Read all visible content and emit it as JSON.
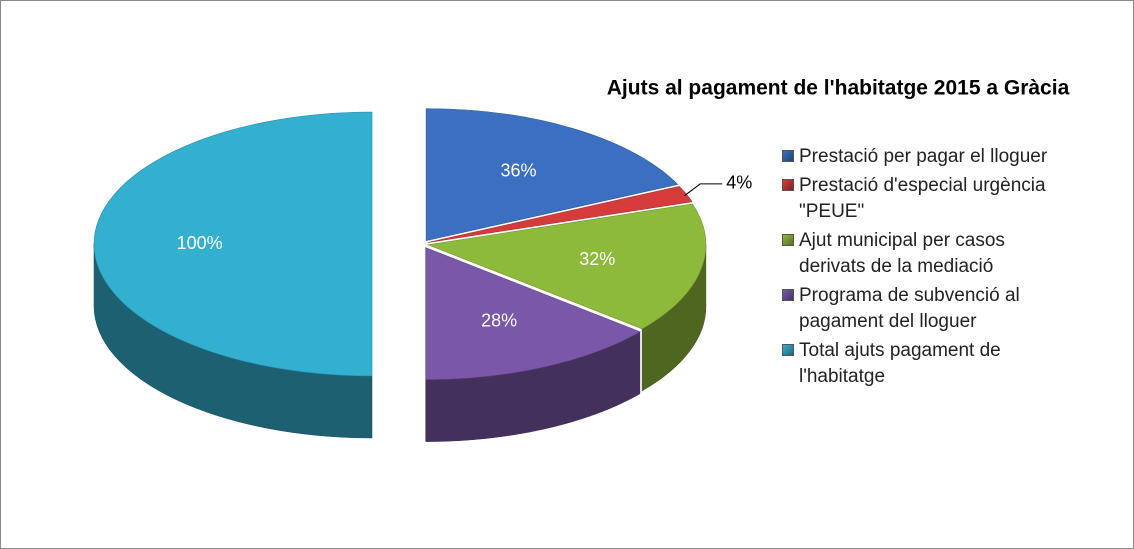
{
  "chart_data": {
    "type": "pie",
    "title": "Ajuts al pagament de l'habitatge 2015 a Gràcia",
    "categories": [
      "Prestació per pagar el lloguer",
      "Prestació d'especial urgència \"PEUE\"",
      "Ajut municipal per casos derivats de la mediació",
      "Programa de subvenció al pagament del lloguer",
      "Total ajuts pagament de l'habitatge"
    ],
    "values": [
      36,
      4,
      32,
      28,
      100
    ],
    "value_labels": [
      "36%",
      "4%",
      "32%",
      "28%",
      "100%"
    ],
    "colors": [
      "#3b6fc1",
      "#d63b3b",
      "#8dba3b",
      "#7a57a8",
      "#33afcf"
    ],
    "legend": "right"
  }
}
